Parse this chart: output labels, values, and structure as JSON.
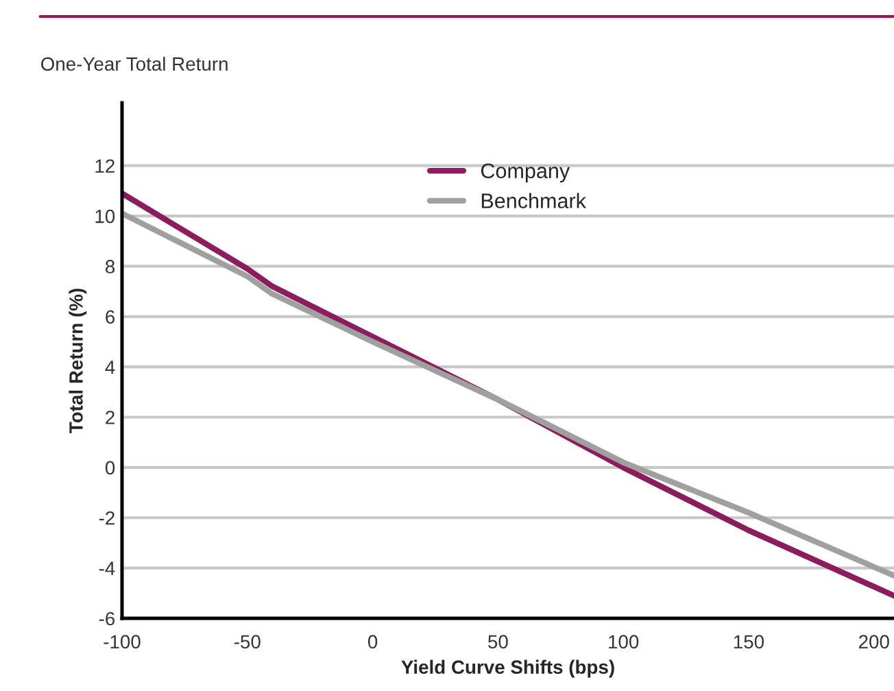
{
  "chart_data": {
    "type": "line",
    "title": "One-Year Total Return",
    "xlabel": "Yield Curve Shifts (bps)",
    "ylabel": "Total Return (%)",
    "series": [
      {
        "name": "Company",
        "color": "#8c1d5c",
        "x": [
          -100,
          -50,
          -40,
          0,
          50,
          100,
          150,
          208
        ],
        "values": [
          10.9,
          7.9,
          7.2,
          5.2,
          2.7,
          0,
          -2.5,
          -5.1
        ]
      },
      {
        "name": "Benchmark",
        "color": "#a0a0a0",
        "x": [
          -100,
          -50,
          -40,
          0,
          50,
          100,
          150,
          208
        ],
        "values": [
          10.1,
          7.6,
          6.9,
          5.0,
          2.7,
          0.2,
          -1.8,
          -4.3
        ]
      }
    ],
    "xlim": [
      -100,
      208
    ],
    "xticks": [
      -100,
      -50,
      0,
      50,
      100,
      150,
      200
    ],
    "ylim": [
      -6,
      14.5
    ],
    "yticks": [
      -6,
      -4,
      -2,
      0,
      2,
      4,
      6,
      8,
      10,
      12
    ],
    "grid": "y",
    "legend": "top",
    "marker": "none",
    "line_style": "solid"
  }
}
